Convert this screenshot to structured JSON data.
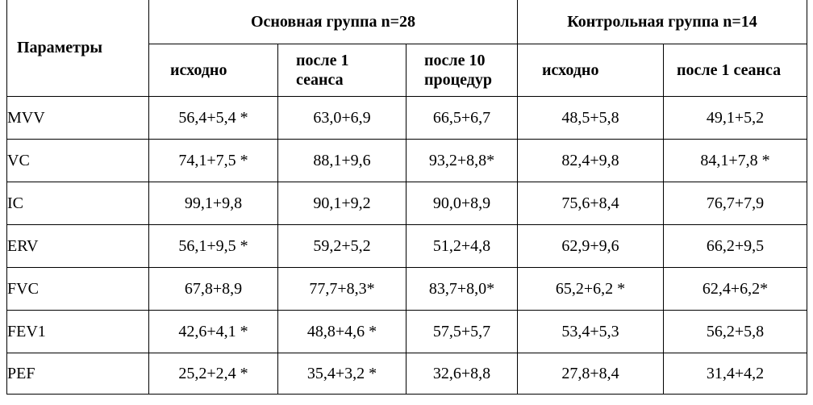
{
  "table": {
    "header": {
      "params_label": "Параметры",
      "group_main": "Основная группа n=28",
      "group_control": "Контрольная группа n=14",
      "sub": [
        {
          "line1": "исходно",
          "line2": ""
        },
        {
          "line1": "после 1",
          "line2": "сеанса"
        },
        {
          "line1": "после 10",
          "line2": "процедур"
        },
        {
          "line1": "исходно",
          "line2": ""
        },
        {
          "line1": "после 1 сеанса",
          "line2": ""
        }
      ]
    },
    "rows": [
      {
        "param": "MVV",
        "values": [
          "56,4+5,4 *",
          "63,0+6,9",
          "66,5+6,7",
          "48,5+5,8",
          "49,1+5,2"
        ]
      },
      {
        "param": "VC",
        "values": [
          "74,1+7,5 *",
          "88,1+9,6",
          "93,2+8,8*",
          "82,4+9,8",
          "84,1+7,8 *"
        ]
      },
      {
        "param": "IC",
        "values": [
          "99,1+9,8",
          "90,1+9,2",
          "90,0+8,9",
          "75,6+8,4",
          "76,7+7,9"
        ]
      },
      {
        "param": "ERV",
        "values": [
          "56,1+9,5 *",
          "59,2+5,2",
          "51,2+4,8",
          "62,9+9,6",
          "66,2+9,5"
        ]
      },
      {
        "param": "FVC",
        "values": [
          "67,8+8,9",
          "77,7+8,3*",
          "83,7+8,0*",
          "65,2+6,2 *",
          "62,4+6,2*"
        ]
      },
      {
        "param": "FEV1",
        "values": [
          "42,6+4,1 *",
          "48,8+4,6 *",
          "57,5+5,7",
          "53,4+5,3",
          "56,2+5,8"
        ]
      },
      {
        "param": "PEF",
        "values": [
          "25,2+2,4 *",
          "35,4+3,2 *",
          "32,6+8,8",
          "27,8+8,4",
          "31,4+4,2"
        ]
      }
    ]
  }
}
